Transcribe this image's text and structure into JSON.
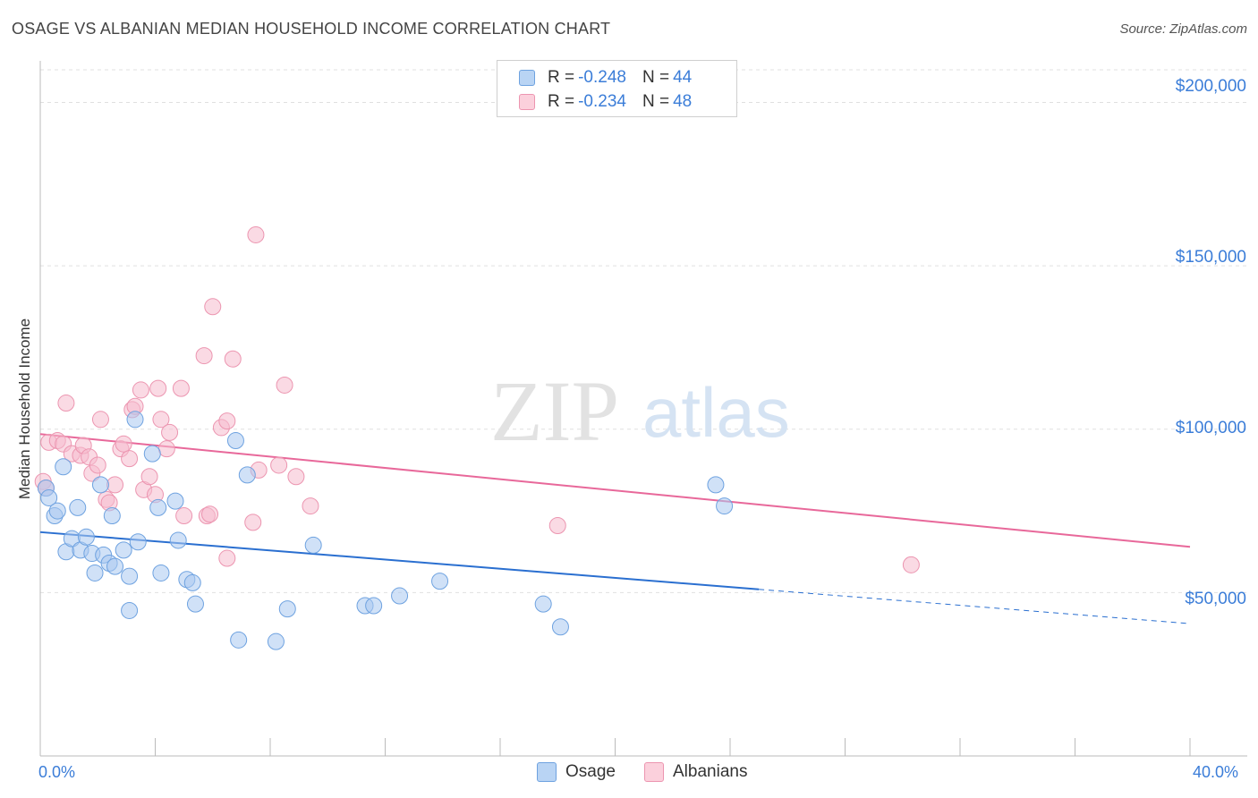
{
  "title": "OSAGE VS ALBANIAN MEDIAN HOUSEHOLD INCOME CORRELATION CHART",
  "source": "Source: ZipAtlas.com",
  "watermark": {
    "zip": "ZIP",
    "atlas": "atlas"
  },
  "legend": {
    "osage": {
      "r_label": "R = ",
      "r_value": "-0.248",
      "n_label": "N = ",
      "n_value": "44"
    },
    "albanians": {
      "r_label": "R = ",
      "r_value": "-0.234",
      "n_label": "N = ",
      "n_value": "48"
    }
  },
  "bottom_legend": {
    "osage": "Osage",
    "albanians": "Albanians"
  },
  "colors": {
    "osage_fill": "#a9c9f0",
    "osage_stroke": "#6ea2e0",
    "osage_line": "#2a6fd0",
    "albanian_fill": "#f6bccd",
    "albanian_stroke": "#ec95b0",
    "albanian_line": "#e8689a",
    "axis_text": "#3b7dd8",
    "grid": "#e0e0e0"
  },
  "chart_data": {
    "type": "scatter",
    "title": "OSAGE VS ALBANIAN MEDIAN HOUSEHOLD INCOME CORRELATION CHART",
    "xlabel": "",
    "ylabel": "Median Household Income",
    "xlim": [
      0,
      40
    ],
    "ylim": [
      0,
      210000
    ],
    "x_tick_labels": [
      "0.0%",
      "40.0%"
    ],
    "y_ticks": [
      50000,
      100000,
      150000,
      200000
    ],
    "y_tick_labels": [
      "$50,000",
      "$100,000",
      "$150,000",
      "$200,000"
    ],
    "series": [
      {
        "name": "Osage",
        "trend": {
          "x0": 0,
          "y0": 68500,
          "x1": 25,
          "y1": 51000,
          "dash_to_x": 40,
          "dash_to_y": 40500
        },
        "points": [
          [
            0.2,
            82000
          ],
          [
            0.3,
            79000
          ],
          [
            0.5,
            73500
          ],
          [
            0.6,
            75000
          ],
          [
            0.8,
            88500
          ],
          [
            0.9,
            62500
          ],
          [
            1.1,
            66500
          ],
          [
            1.3,
            76000
          ],
          [
            1.4,
            63000
          ],
          [
            1.6,
            67000
          ],
          [
            1.8,
            62000
          ],
          [
            1.9,
            56000
          ],
          [
            2.1,
            83000
          ],
          [
            2.2,
            61500
          ],
          [
            2.4,
            59000
          ],
          [
            2.5,
            73500
          ],
          [
            2.6,
            58000
          ],
          [
            2.9,
            63000
          ],
          [
            3.1,
            55000
          ],
          [
            3.1,
            44500
          ],
          [
            3.3,
            103000
          ],
          [
            3.4,
            65500
          ],
          [
            3.9,
            92500
          ],
          [
            4.1,
            76000
          ],
          [
            4.2,
            56000
          ],
          [
            4.7,
            78000
          ],
          [
            4.8,
            66000
          ],
          [
            5.1,
            54000
          ],
          [
            5.3,
            53000
          ],
          [
            5.4,
            46500
          ],
          [
            6.8,
            96500
          ],
          [
            6.9,
            35500
          ],
          [
            7.2,
            86000
          ],
          [
            8.2,
            35000
          ],
          [
            8.6,
            45000
          ],
          [
            9.5,
            64500
          ],
          [
            11.3,
            46000
          ],
          [
            11.6,
            46000
          ],
          [
            12.5,
            49000
          ],
          [
            13.9,
            53500
          ],
          [
            17.5,
            46500
          ],
          [
            18.1,
            39500
          ],
          [
            23.5,
            83000
          ],
          [
            23.8,
            76500
          ]
        ]
      },
      {
        "name": "Albanians",
        "trend": {
          "x0": 0,
          "y0": 98500,
          "x1": 40,
          "y1": 64000
        },
        "points": [
          [
            0.1,
            84000
          ],
          [
            0.2,
            82000
          ],
          [
            0.3,
            96000
          ],
          [
            0.6,
            96500
          ],
          [
            0.8,
            95500
          ],
          [
            0.9,
            108000
          ],
          [
            1.1,
            92500
          ],
          [
            1.4,
            92000
          ],
          [
            1.5,
            95000
          ],
          [
            1.7,
            91500
          ],
          [
            1.8,
            86500
          ],
          [
            2.0,
            89000
          ],
          [
            2.1,
            103000
          ],
          [
            2.3,
            78500
          ],
          [
            2.4,
            77500
          ],
          [
            2.6,
            83000
          ],
          [
            2.8,
            94000
          ],
          [
            2.9,
            95500
          ],
          [
            3.1,
            91000
          ],
          [
            3.2,
            106000
          ],
          [
            3.3,
            107000
          ],
          [
            3.5,
            112000
          ],
          [
            3.6,
            81500
          ],
          [
            3.8,
            85500
          ],
          [
            4.0,
            80000
          ],
          [
            4.1,
            112500
          ],
          [
            4.2,
            103000
          ],
          [
            4.4,
            94000
          ],
          [
            4.5,
            99000
          ],
          [
            4.9,
            112500
          ],
          [
            5.0,
            73500
          ],
          [
            5.7,
            122500
          ],
          [
            5.8,
            73500
          ],
          [
            5.9,
            74000
          ],
          [
            6.0,
            137500
          ],
          [
            6.3,
            100500
          ],
          [
            6.5,
            102500
          ],
          [
            6.5,
            60500
          ],
          [
            6.7,
            121500
          ],
          [
            7.4,
            71500
          ],
          [
            7.5,
            159500
          ],
          [
            7.6,
            87500
          ],
          [
            8.3,
            89000
          ],
          [
            8.5,
            113500
          ],
          [
            8.9,
            85500
          ],
          [
            9.4,
            76500
          ],
          [
            18.0,
            70500
          ],
          [
            30.3,
            58500
          ]
        ]
      }
    ]
  }
}
